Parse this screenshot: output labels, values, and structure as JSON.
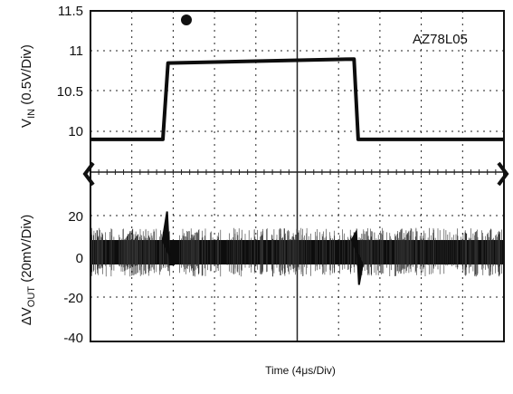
{
  "chart_data": [
    {
      "type": "line",
      "panel": "input",
      "ylabel": {
        "main": "V",
        "sub": "IN",
        "rest": " (0.5V/Div)"
      },
      "yticks": [
        "11.5",
        "11",
        "10.5",
        "10"
      ],
      "ytick_values": [
        11.5,
        11.0,
        10.5,
        10.0
      ],
      "ylim": [
        9.0,
        11.5
      ],
      "annotation": "AZ78L05",
      "grid": true,
      "series": [
        {
          "x": [
            0,
            7.0,
            7.5,
            25.5,
            25.9,
            40
          ],
          "y": [
            9.9,
            9.9,
            10.85,
            10.9,
            9.9,
            9.9
          ]
        }
      ]
    },
    {
      "type": "line",
      "panel": "output",
      "ylabel": {
        "main": "ΔV",
        "sub": "OUT",
        "rest": " (20mV/Div)"
      },
      "yticks": [
        "20",
        "0",
        "-20",
        "-40"
      ],
      "ytick_values": [
        20,
        0,
        -20,
        -40
      ],
      "ylim": [
        -40,
        30
      ],
      "grid": true,
      "noise_band": [
        -4,
        8
      ],
      "spikes": [
        {
          "x": 7.5,
          "peak": 22,
          "trough": -4
        },
        {
          "x": 25.8,
          "peak": 12,
          "trough": -14
        }
      ]
    }
  ],
  "xlabel": "Time (4μs/Div)",
  "x_divisions": 10,
  "time_per_div_us": 4,
  "colors": {
    "trace": "#0d0d0d",
    "grid": "#222222",
    "frame": "#111111",
    "background": "#ffffff"
  }
}
